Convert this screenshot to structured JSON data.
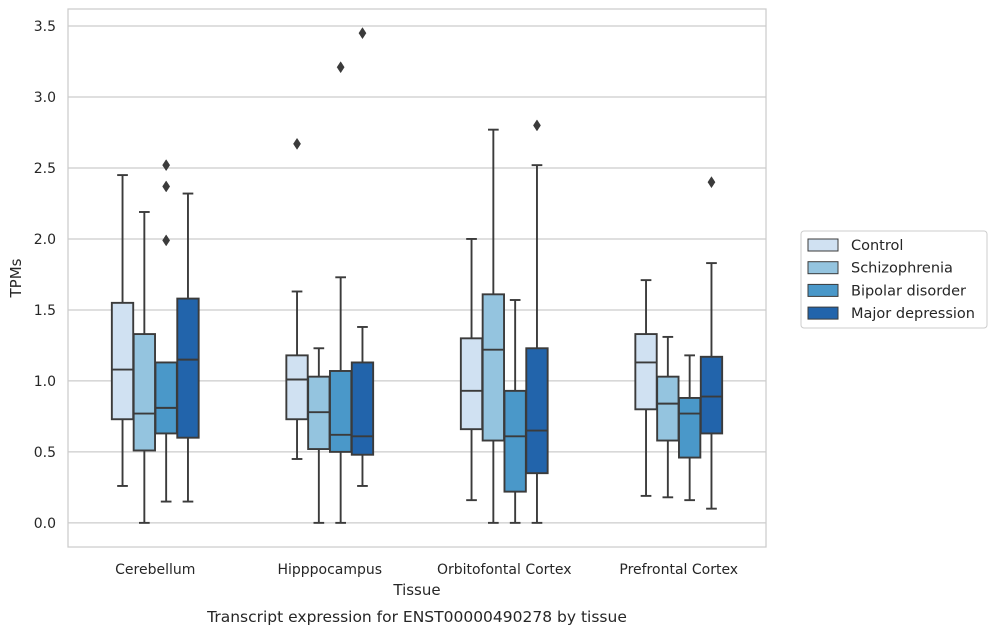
{
  "chart_data": {
    "type": "box",
    "xlabel": "Tissue",
    "ylabel": "TPMs",
    "caption": "Transcript expression for ENST00000490278 by tissue",
    "ylim": [
      -0.17,
      3.62
    ],
    "yticks": [
      "0.0",
      "0.5",
      "1.0",
      "1.5",
      "2.0",
      "2.5",
      "3.0",
      "3.5"
    ],
    "ytick_values": [
      0,
      0.5,
      1.0,
      1.5,
      2.0,
      2.5,
      3.0,
      3.5
    ],
    "grid": "horizontal",
    "legend_position": "right",
    "categories": [
      "Cerebellum",
      "Hipppocampus",
      "Orbitofontal Cortex",
      "Prefrontal Cortex"
    ],
    "series": [
      {
        "name": "Control",
        "color": "#d0e1f2",
        "boxes": [
          {
            "whislo": 0.26,
            "q1": 0.73,
            "med": 1.08,
            "q3": 1.55,
            "whishi": 2.45,
            "fliers": []
          },
          {
            "whislo": 0.45,
            "q1": 0.73,
            "med": 1.01,
            "q3": 1.18,
            "whishi": 1.63,
            "fliers": [
              2.67
            ]
          },
          {
            "whislo": 0.16,
            "q1": 0.66,
            "med": 0.93,
            "q3": 1.3,
            "whishi": 2.0,
            "fliers": []
          },
          {
            "whislo": 0.19,
            "q1": 0.8,
            "med": 1.13,
            "q3": 1.33,
            "whishi": 1.71,
            "fliers": []
          }
        ]
      },
      {
        "name": "Schizophrenia",
        "color": "#94c4df",
        "boxes": [
          {
            "whislo": 0.0,
            "q1": 0.51,
            "med": 0.77,
            "q3": 1.33,
            "whishi": 2.19,
            "fliers": []
          },
          {
            "whislo": 0.0,
            "q1": 0.52,
            "med": 0.78,
            "q3": 1.03,
            "whishi": 1.23,
            "fliers": []
          },
          {
            "whislo": 0.0,
            "q1": 0.58,
            "med": 1.22,
            "q3": 1.61,
            "whishi": 2.77,
            "fliers": []
          },
          {
            "whislo": 0.18,
            "q1": 0.58,
            "med": 0.84,
            "q3": 1.03,
            "whishi": 1.31,
            "fliers": []
          }
        ]
      },
      {
        "name": "Bipolar disorder",
        "color": "#4a98c9",
        "boxes": [
          {
            "whislo": 0.15,
            "q1": 0.63,
            "med": 0.81,
            "q3": 1.13,
            "whishi": 1.13,
            "fliers": [
              1.99,
              2.37,
              2.52
            ]
          },
          {
            "whislo": 0.0,
            "q1": 0.5,
            "med": 0.62,
            "q3": 1.07,
            "whishi": 1.73,
            "fliers": [
              3.21
            ]
          },
          {
            "whislo": 0.0,
            "q1": 0.22,
            "med": 0.61,
            "q3": 0.93,
            "whishi": 1.57,
            "fliers": []
          },
          {
            "whislo": 0.16,
            "q1": 0.46,
            "med": 0.77,
            "q3": 0.88,
            "whishi": 1.18,
            "fliers": []
          }
        ]
      },
      {
        "name": "Major depression",
        "color": "#2264ab",
        "boxes": [
          {
            "whislo": 0.15,
            "q1": 0.6,
            "med": 1.15,
            "q3": 1.58,
            "whishi": 2.32,
            "fliers": []
          },
          {
            "whislo": 0.26,
            "q1": 0.48,
            "med": 0.61,
            "q3": 1.13,
            "whishi": 1.38,
            "fliers": [
              3.45
            ]
          },
          {
            "whislo": 0.0,
            "q1": 0.35,
            "med": 0.65,
            "q3": 1.23,
            "whishi": 2.52,
            "fliers": [
              2.8
            ]
          },
          {
            "whislo": 0.1,
            "q1": 0.63,
            "med": 0.89,
            "q3": 1.17,
            "whishi": 1.83,
            "fliers": [
              2.4
            ]
          }
        ]
      }
    ]
  }
}
